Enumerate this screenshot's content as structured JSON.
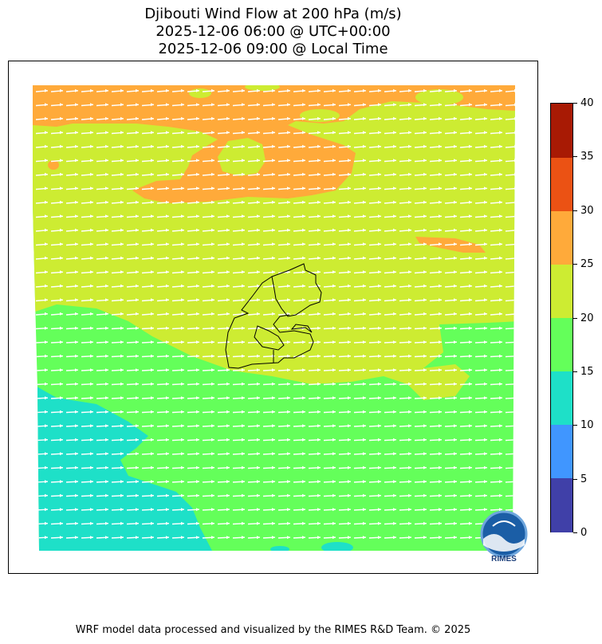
{
  "title": {
    "line1": "Djibouti Wind Flow at 200 hPa (m/s)",
    "line2": "2025-12-06 06:00 @ UTC+00:00",
    "line3": "2025-12-06 09:00 @ Local Time"
  },
  "colorbar": {
    "ticks": [
      "0",
      "5",
      "10",
      "15",
      "20",
      "25",
      "30",
      "35",
      "40"
    ],
    "colors": [
      "#4040a8",
      "#4096ff",
      "#1ee0c8",
      "#64ff5a",
      "#cdec32",
      "#ffaa3a",
      "#eb5214",
      "#a81a04"
    ]
  },
  "logo": {
    "text": "RIMES"
  },
  "footer": {
    "text": "WRF model data processed and visualized by the RIMES R&D Team. © 2025"
  }
}
